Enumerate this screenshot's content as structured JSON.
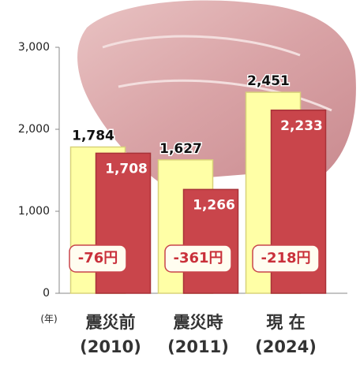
{
  "chart_data": {
    "type": "bar",
    "categories": [
      "震災前",
      "震災時",
      "現 在"
    ],
    "category_years": [
      "(2010)",
      "(2011)",
      "(2024)"
    ],
    "x_unit": "(年)",
    "series": [
      {
        "color": "#ffffa6",
        "values": [
          1784,
          1627,
          2451
        ],
        "value_labels": [
          "1,784",
          "1,627",
          "2,451"
        ]
      },
      {
        "color": "#c9454b",
        "values": [
          1708,
          1266,
          2233
        ],
        "value_labels": [
          "1,708",
          "1,266",
          "2,233"
        ]
      }
    ],
    "annotations": [
      "-76円",
      "-361円",
      "-218円"
    ],
    "ylim": [
      0,
      3000
    ],
    "yticks": [
      {
        "value": 0,
        "label": "0"
      },
      {
        "value": 1000,
        "label": "1,000"
      },
      {
        "value": 2000,
        "label": "2,000"
      },
      {
        "value": 3000,
        "label": "3,000"
      }
    ],
    "grid": false
  }
}
